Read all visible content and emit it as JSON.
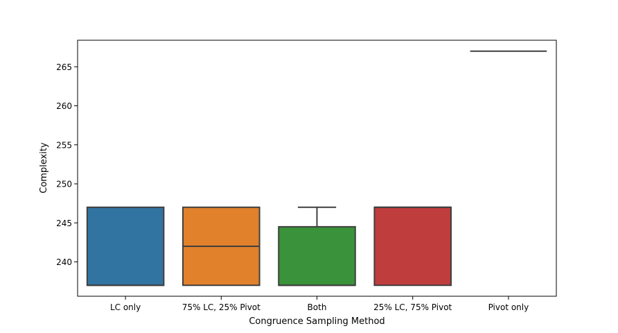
{
  "chart_data": {
    "type": "box",
    "title": "",
    "xlabel": "Congruence Sampling Method",
    "ylabel": "Complexity",
    "ylim": [
      235.6,
      268.4
    ],
    "yticks": [
      240,
      245,
      250,
      255,
      260,
      265
    ],
    "ytick_labels": [
      "240",
      "245",
      "250",
      "255",
      "260",
      "265"
    ],
    "categories": [
      "LC only",
      "75% LC, 25% Pivot",
      "Both",
      "25% LC, 75% Pivot",
      "Pivot only"
    ],
    "colors": [
      "#3274a1",
      "#e1812c",
      "#3a923a",
      "#c03d3e",
      "#9372b2"
    ],
    "boxes": [
      {
        "whisker_low": 237,
        "q1": 237,
        "median": 237,
        "q3": 247,
        "whisker_high": 247
      },
      {
        "whisker_low": 237,
        "q1": 237,
        "median": 242,
        "q3": 247,
        "whisker_high": 247
      },
      {
        "whisker_low": 237,
        "q1": 237,
        "median": 237,
        "q3": 244.5,
        "whisker_high": 247
      },
      {
        "whisker_low": 237,
        "q1": 237,
        "median": 247,
        "q3": 247,
        "whisker_high": 247
      },
      {
        "whisker_low": 267,
        "q1": 267,
        "median": 267,
        "q3": 267,
        "whisker_high": 267
      }
    ]
  }
}
